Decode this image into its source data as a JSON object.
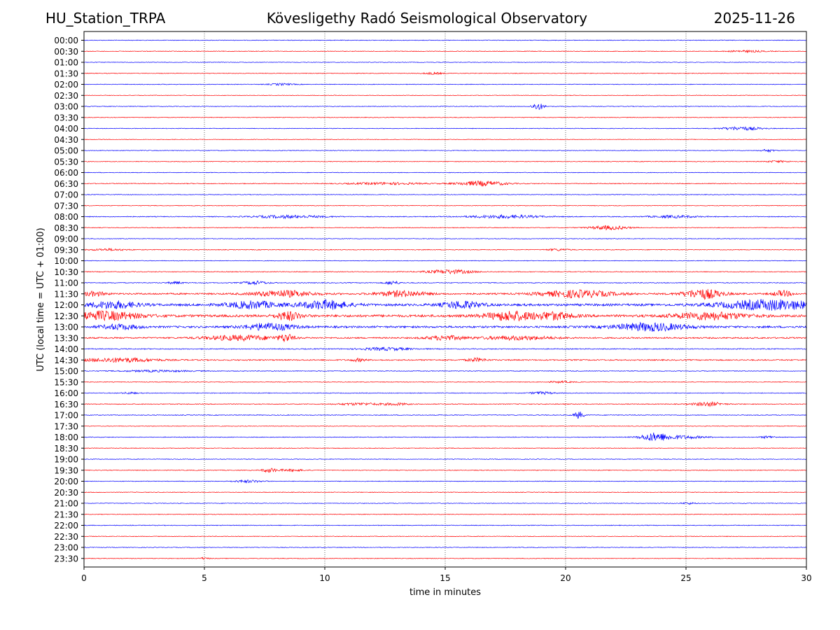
{
  "header": {
    "station": "HU_Station_TRPA",
    "observatory": "Kövesligethy Radó Seismological Observatory",
    "date": "2025-11-26"
  },
  "chart_data": {
    "type": "line",
    "title": "Kövesligethy Radó Seismological Observatory",
    "xlabel": "time in minutes",
    "ylabel": "UTC (local time = UTC + 01:00)",
    "xlim": [
      0,
      30
    ],
    "xticks": [
      "0",
      "5",
      "10",
      "15",
      "20",
      "25",
      "30"
    ],
    "grid": "vertical dotted lines every 5 minutes",
    "trace_colors": [
      "#0000ff",
      "#ff0000"
    ],
    "rows": [
      {
        "label": "00:00",
        "noise": 0.8,
        "events": []
      },
      {
        "label": "00:30",
        "noise": 0.8,
        "events": [
          {
            "t": 27.5,
            "amp": 1.2,
            "width": 0.8
          }
        ]
      },
      {
        "label": "01:00",
        "noise": 0.7,
        "events": []
      },
      {
        "label": "01:30",
        "noise": 0.8,
        "events": [
          {
            "t": 14.5,
            "amp": 1.5,
            "width": 0.4
          }
        ]
      },
      {
        "label": "02:00",
        "noise": 0.8,
        "events": [
          {
            "t": 8.2,
            "amp": 1.3,
            "width": 0.5
          }
        ]
      },
      {
        "label": "02:30",
        "noise": 0.7,
        "events": []
      },
      {
        "label": "03:00",
        "noise": 0.8,
        "events": [
          {
            "t": 18.85,
            "amp": 5,
            "width": 0.25
          }
        ]
      },
      {
        "label": "03:30",
        "noise": 0.8,
        "events": []
      },
      {
        "label": "04:00",
        "noise": 0.8,
        "events": [
          {
            "t": 27.3,
            "amp": 2.5,
            "width": 0.8
          }
        ]
      },
      {
        "label": "04:30",
        "noise": 0.7,
        "events": []
      },
      {
        "label": "05:00",
        "noise": 0.8,
        "events": [
          {
            "t": 28.4,
            "amp": 1.8,
            "width": 0.3
          }
        ]
      },
      {
        "label": "05:30",
        "noise": 0.8,
        "events": [
          {
            "t": 28.8,
            "amp": 1.2,
            "width": 0.5
          }
        ]
      },
      {
        "label": "06:00",
        "noise": 0.8,
        "events": []
      },
      {
        "label": "06:30",
        "noise": 1.0,
        "events": [
          {
            "t": 12.5,
            "amp": 1.5,
            "width": 1.5
          },
          {
            "t": 16.5,
            "amp": 3.5,
            "width": 1.0
          }
        ]
      },
      {
        "label": "07:00",
        "noise": 0.8,
        "events": []
      },
      {
        "label": "07:30",
        "noise": 0.8,
        "events": []
      },
      {
        "label": "08:00",
        "noise": 1.0,
        "events": [
          {
            "t": 8.5,
            "amp": 2.0,
            "width": 1.5
          },
          {
            "t": 17.5,
            "amp": 2.2,
            "width": 1.5
          },
          {
            "t": 24.5,
            "amp": 1.6,
            "width": 1.0
          }
        ]
      },
      {
        "label": "08:30",
        "noise": 0.9,
        "events": [
          {
            "t": 21.8,
            "amp": 2.8,
            "width": 0.8
          }
        ]
      },
      {
        "label": "09:00",
        "noise": 0.8,
        "events": []
      },
      {
        "label": "09:30",
        "noise": 0.9,
        "events": [
          {
            "t": 1.0,
            "amp": 1.3,
            "width": 0.8
          },
          {
            "t": 19.7,
            "amp": 1.3,
            "width": 0.5
          }
        ]
      },
      {
        "label": "10:00",
        "noise": 0.8,
        "events": []
      },
      {
        "label": "10:30",
        "noise": 1.0,
        "events": [
          {
            "t": 15.2,
            "amp": 2.8,
            "width": 1.0
          }
        ]
      },
      {
        "label": "11:00",
        "noise": 1.0,
        "events": [
          {
            "t": 7.1,
            "amp": 2.5,
            "width": 0.5
          },
          {
            "t": 12.8,
            "amp": 2.5,
            "width": 0.3
          },
          {
            "t": 3.8,
            "amp": 1.8,
            "width": 0.3
          }
        ]
      },
      {
        "label": "11:30",
        "noise": 2.0,
        "events": [
          {
            "t": 0.4,
            "amp": 3.0,
            "width": 0.5
          },
          {
            "t": 8.3,
            "amp": 4.5,
            "width": 1.2
          },
          {
            "t": 13.2,
            "amp": 4.0,
            "width": 1.0
          },
          {
            "t": 20.5,
            "amp": 5.0,
            "width": 1.5
          },
          {
            "t": 25.7,
            "amp": 7.0,
            "width": 0.8
          },
          {
            "t": 29.0,
            "amp": 4.0,
            "width": 0.4
          }
        ]
      },
      {
        "label": "12:00",
        "noise": 3.0,
        "events": [
          {
            "t": 1.2,
            "amp": 5.0,
            "width": 1.0
          },
          {
            "t": 7.0,
            "amp": 5.0,
            "width": 1.0
          },
          {
            "t": 10.0,
            "amp": 6.0,
            "width": 1.0
          },
          {
            "t": 15.7,
            "amp": 5.0,
            "width": 0.8
          },
          {
            "t": 28.5,
            "amp": 7.0,
            "width": 2.0
          }
        ]
      },
      {
        "label": "12:30",
        "noise": 3.0,
        "events": [
          {
            "t": 0.8,
            "amp": 6.0,
            "width": 1.5
          },
          {
            "t": 8.5,
            "amp": 6.0,
            "width": 0.5
          },
          {
            "t": 17.7,
            "amp": 6.5,
            "width": 1.0
          },
          {
            "t": 19.5,
            "amp": 5.0,
            "width": 0.8
          },
          {
            "t": 26.0,
            "amp": 5.0,
            "width": 1.5
          }
        ]
      },
      {
        "label": "13:00",
        "noise": 2.5,
        "events": [
          {
            "t": 7.7,
            "amp": 5.0,
            "width": 1.0
          },
          {
            "t": 23.5,
            "amp": 5.5,
            "width": 1.5
          },
          {
            "t": 1.5,
            "amp": 3.5,
            "width": 0.8
          }
        ]
      },
      {
        "label": "13:30",
        "noise": 1.8,
        "events": [
          {
            "t": 6.5,
            "amp": 3.5,
            "width": 1.5
          },
          {
            "t": 8.4,
            "amp": 5.0,
            "width": 0.3
          },
          {
            "t": 15.0,
            "amp": 3.0,
            "width": 0.8
          },
          {
            "t": 18.0,
            "amp": 2.5,
            "width": 1.5
          }
        ]
      },
      {
        "label": "14:00",
        "noise": 1.2,
        "events": [
          {
            "t": 12.5,
            "amp": 2.0,
            "width": 1.0
          }
        ]
      },
      {
        "label": "14:30",
        "noise": 1.5,
        "events": [
          {
            "t": 1.5,
            "amp": 3.0,
            "width": 1.5
          },
          {
            "t": 16.3,
            "amp": 2.5,
            "width": 0.4
          },
          {
            "t": 11.4,
            "amp": 2.0,
            "width": 0.3
          }
        ]
      },
      {
        "label": "15:00",
        "noise": 0.9,
        "events": [
          {
            "t": 3.0,
            "amp": 1.2,
            "width": 1.5
          }
        ]
      },
      {
        "label": "15:30",
        "noise": 0.8,
        "events": [
          {
            "t": 19.8,
            "amp": 1.2,
            "width": 0.5
          }
        ]
      },
      {
        "label": "16:00",
        "noise": 0.9,
        "events": [
          {
            "t": 19.0,
            "amp": 1.8,
            "width": 0.5
          },
          {
            "t": 1.9,
            "amp": 1.3,
            "width": 0.3
          }
        ]
      },
      {
        "label": "16:30",
        "noise": 1.0,
        "events": [
          {
            "t": 25.9,
            "amp": 3.0,
            "width": 0.6
          },
          {
            "t": 11.5,
            "amp": 1.6,
            "width": 1.0
          },
          {
            "t": 13.0,
            "amp": 1.5,
            "width": 0.5
          }
        ]
      },
      {
        "label": "17:00",
        "noise": 0.9,
        "events": [
          {
            "t": 20.55,
            "amp": 5.0,
            "width": 0.2
          }
        ]
      },
      {
        "label": "17:30",
        "noise": 0.8,
        "events": []
      },
      {
        "label": "18:00",
        "noise": 0.9,
        "events": [
          {
            "t": 23.7,
            "amp": 5.5,
            "width": 0.6
          },
          {
            "t": 24.8,
            "amp": 2.2,
            "width": 1.0
          },
          {
            "t": 28.4,
            "amp": 1.6,
            "width": 0.3
          }
        ]
      },
      {
        "label": "18:30",
        "noise": 0.8,
        "events": []
      },
      {
        "label": "19:00",
        "noise": 0.8,
        "events": []
      },
      {
        "label": "19:30",
        "noise": 0.9,
        "events": [
          {
            "t": 7.7,
            "amp": 3.0,
            "width": 0.3
          },
          {
            "t": 8.6,
            "amp": 1.6,
            "width": 0.5
          }
        ]
      },
      {
        "label": "20:00",
        "noise": 0.8,
        "events": [
          {
            "t": 6.8,
            "amp": 1.8,
            "width": 0.6
          }
        ]
      },
      {
        "label": "20:30",
        "noise": 0.8,
        "events": []
      },
      {
        "label": "21:00",
        "noise": 0.8,
        "events": [
          {
            "t": 25.1,
            "amp": 1.3,
            "width": 0.3
          }
        ]
      },
      {
        "label": "21:30",
        "noise": 0.8,
        "events": []
      },
      {
        "label": "22:00",
        "noise": 0.9,
        "events": []
      },
      {
        "label": "22:30",
        "noise": 0.8,
        "events": []
      },
      {
        "label": "23:00",
        "noise": 0.8,
        "events": []
      },
      {
        "label": "23:30",
        "noise": 0.8,
        "events": [
          {
            "t": 5.0,
            "amp": 1.3,
            "width": 0.2
          }
        ]
      }
    ]
  }
}
